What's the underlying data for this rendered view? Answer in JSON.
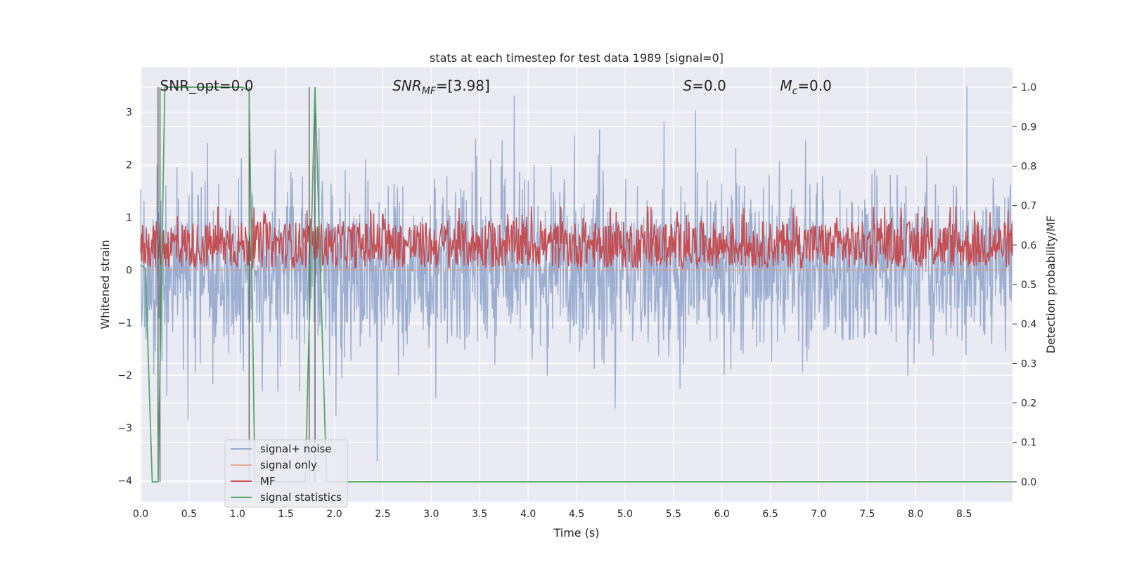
{
  "chart_data": {
    "type": "line",
    "title": "stats at each timestep for test data 1989 [signal=0]",
    "xlabel": "Time (s)",
    "ylabel": "Whitened strain",
    "ylabel_right": "Detection probability/MF",
    "xlim": [
      0,
      9
    ],
    "ylim": [
      -4.4,
      3.85
    ],
    "ylim_right": [
      -0.05,
      1.05
    ],
    "x_ticks": [
      "0.0",
      "0.5",
      "1.0",
      "1.5",
      "2.0",
      "2.5",
      "3.0",
      "3.5",
      "4.0",
      "4.5",
      "5.0",
      "5.5",
      "6.0",
      "6.5",
      "7.0",
      "7.5",
      "8.0",
      "8.5"
    ],
    "y_ticks": [
      "−4",
      "−3",
      "−2",
      "−1",
      "0",
      "1",
      "2",
      "3"
    ],
    "y_ticks_right": [
      "0.0",
      "0.1",
      "0.2",
      "0.3",
      "0.4",
      "0.5",
      "0.6",
      "0.7",
      "0.8",
      "0.9",
      "1.0"
    ],
    "grid": true,
    "legend_position": "lower-left",
    "annotations": [
      {
        "text": "SNR_opt=0.0",
        "x": 0.2,
        "y": 3.5
      },
      {
        "prefix": "SNR",
        "sub": "MF",
        "suffix": "=[3.98]",
        "x": 2.6,
        "y": 3.5
      },
      {
        "prefix": "S",
        "sub": "",
        "suffix": "=0.0",
        "x": 5.6,
        "y": 3.5
      },
      {
        "prefix": "M",
        "sub": "c",
        "suffix": "=0.0",
        "x": 6.6,
        "y": 3.5
      }
    ],
    "vlines": [
      0.18,
      0.2,
      1.12,
      1.74,
      1.8
    ],
    "vline_ymax": 1.0,
    "series": [
      {
        "name": "signal+ noise",
        "color": "#4c72b0",
        "axis": "left",
        "model": "whitened gaussian noise",
        "std": 0.85,
        "amplitude_range": [
          -3.75,
          3.5
        ]
      },
      {
        "name": "signal only",
        "color": "#dd8452",
        "axis": "left",
        "model": "zero",
        "value": 0.0
      },
      {
        "name": "MF",
        "color": "#c44e52",
        "axis": "right",
        "model": "noisy band",
        "low": 0.54,
        "high": 0.66,
        "peaks": 0.7
      },
      {
        "name": "signal statistics",
        "color": "#55a868",
        "axis": "right",
        "x": [
          0.0,
          0.05,
          0.12,
          0.18,
          0.25,
          1.05,
          1.12,
          1.18,
          1.7,
          1.8,
          1.92,
          9.0
        ],
        "y": [
          0.55,
          0.54,
          0.0,
          0.0,
          1.0,
          1.0,
          0.99,
          0.0,
          0.0,
          1.0,
          0.0,
          0.0
        ]
      }
    ]
  },
  "colors": {
    "plot_bg": "#eaeaf2",
    "grid": "#ffffff",
    "vline": "#555555"
  }
}
